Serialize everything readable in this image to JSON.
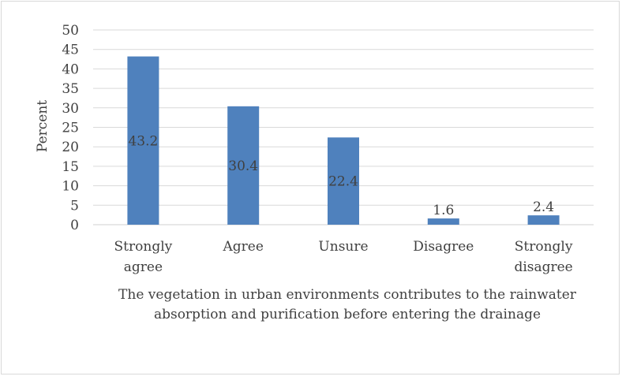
{
  "chart_data": {
    "type": "bar",
    "categories": [
      [
        "Strongly",
        "agree"
      ],
      [
        "Agree"
      ],
      [
        "Unsure"
      ],
      [
        "Disagree"
      ],
      [
        "Strongly",
        "disagree"
      ]
    ],
    "values": [
      43.2,
      30.4,
      22.4,
      1.6,
      2.4
    ],
    "data_labels": [
      "43.2",
      "30.4",
      "22.4",
      "1.6",
      "2.4"
    ],
    "ylabel": "Percent",
    "xlabel": "The vegetation in urban environments contributes to the rainwater absorption and purification before entering the drainage",
    "ylim": [
      0,
      50
    ],
    "yticks": [
      0,
      5,
      10,
      15,
      20,
      25,
      30,
      35,
      40,
      45,
      50
    ],
    "grid": true,
    "bar_color": "#4f81bd",
    "grid_color": "#d9d9d9"
  }
}
